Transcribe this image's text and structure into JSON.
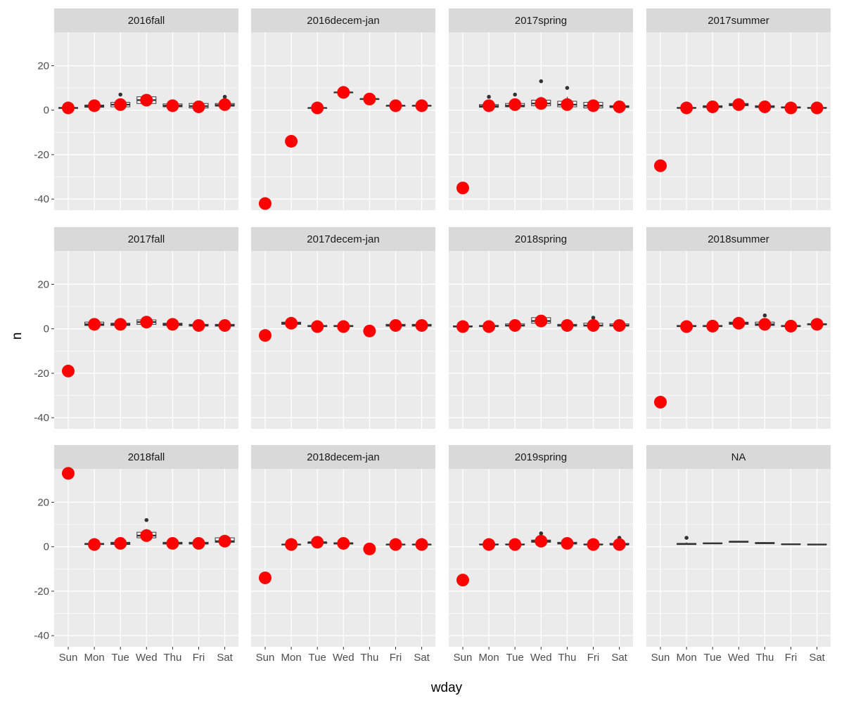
{
  "chart_data": {
    "type": "boxplot-faceted",
    "xlabel": "wday",
    "ylabel": "n",
    "ylim": [
      -45,
      35
    ],
    "yticks": [
      -40,
      -20,
      0,
      20
    ],
    "categories": [
      "Sun",
      "Mon",
      "Tue",
      "Wed",
      "Thu",
      "Fri",
      "Sat"
    ],
    "facet_layout": {
      "rows": 3,
      "cols": 4
    },
    "colors": {
      "point": "#ff0000",
      "panel_bg": "#ebebeb",
      "strip_bg": "#d9d9d9",
      "grid": "#ffffff",
      "box": "#333333"
    },
    "panels": [
      {
        "label": "2016fall",
        "boxes": [
          {
            "cat": "Sun",
            "min": 0.5,
            "q1": 0.8,
            "median": 1,
            "q3": 1.2,
            "max": 1.5,
            "outliers": []
          },
          {
            "cat": "Mon",
            "min": 1,
            "q1": 1.3,
            "median": 1.8,
            "q3": 2.3,
            "max": 4,
            "outliers": []
          },
          {
            "cat": "Tue",
            "min": 1,
            "q1": 1.5,
            "median": 2.5,
            "q3": 3.5,
            "max": 4.5,
            "outliers": [
              7
            ]
          },
          {
            "cat": "Wed",
            "min": 2.5,
            "q1": 3,
            "median": 4.5,
            "q3": 6,
            "max": 7,
            "outliers": []
          },
          {
            "cat": "Thu",
            "min": 1,
            "q1": 1.5,
            "median": 2,
            "q3": 2.8,
            "max": 4,
            "outliers": []
          },
          {
            "cat": "Fri",
            "min": 1,
            "q1": 1,
            "median": 1.8,
            "q3": 3,
            "max": 3.5,
            "outliers": []
          },
          {
            "cat": "Sat",
            "min": 1,
            "q1": 1.8,
            "median": 2.3,
            "q3": 3,
            "max": 4,
            "outliers": [
              6
            ]
          }
        ],
        "points": [
          1,
          2,
          2.5,
          4.5,
          2,
          1.5,
          2.5
        ]
      },
      {
        "label": "2016decem-jan",
        "boxes": [
          {
            "cat": "Tue",
            "min": 1,
            "q1": 1,
            "median": 1,
            "q3": 1,
            "max": 1,
            "outliers": []
          },
          {
            "cat": "Wed",
            "min": 8,
            "q1": 8,
            "median": 8,
            "q3": 8,
            "max": 8,
            "outliers": []
          },
          {
            "cat": "Thu",
            "min": 5,
            "q1": 5,
            "median": 5,
            "q3": 5,
            "max": 5,
            "outliers": []
          },
          {
            "cat": "Fri",
            "min": 2,
            "q1": 2,
            "median": 2,
            "q3": 2,
            "max": 2,
            "outliers": []
          },
          {
            "cat": "Sat",
            "min": 2,
            "q1": 2,
            "median": 2,
            "q3": 2,
            "max": 2,
            "outliers": []
          }
        ],
        "points": [
          -42,
          -14,
          1,
          8,
          5,
          2,
          2
        ]
      },
      {
        "label": "2017spring",
        "boxes": [
          {
            "cat": "Mon",
            "min": 1,
            "q1": 1.3,
            "median": 1.8,
            "q3": 2.5,
            "max": 4,
            "outliers": [
              6
            ]
          },
          {
            "cat": "Tue",
            "min": 1,
            "q1": 1.5,
            "median": 2,
            "q3": 3,
            "max": 4.5,
            "outliers": [
              7
            ]
          },
          {
            "cat": "Wed",
            "min": 1,
            "q1": 2,
            "median": 3,
            "q3": 4.5,
            "max": 6,
            "outliers": [
              13
            ]
          },
          {
            "cat": "Thu",
            "min": 1,
            "q1": 1.5,
            "median": 2.5,
            "q3": 4,
            "max": 6,
            "outliers": [
              10
            ]
          },
          {
            "cat": "Fri",
            "min": 1,
            "q1": 1,
            "median": 2,
            "q3": 3.5,
            "max": 4.5,
            "outliers": []
          },
          {
            "cat": "Sat",
            "min": 1,
            "q1": 1.2,
            "median": 1.5,
            "q3": 2,
            "max": 3.5,
            "outliers": []
          }
        ],
        "points": [
          -35,
          2,
          2.5,
          3,
          2.5,
          2,
          1.5
        ]
      },
      {
        "label": "2017summer",
        "boxes": [
          {
            "cat": "Mon",
            "min": 1,
            "q1": 1,
            "median": 1,
            "q3": 1.2,
            "max": 1.5,
            "outliers": []
          },
          {
            "cat": "Tue",
            "min": 1,
            "q1": 1.2,
            "median": 1.5,
            "q3": 2,
            "max": 2.5,
            "outliers": []
          },
          {
            "cat": "Wed",
            "min": 1.5,
            "q1": 2,
            "median": 2.5,
            "q3": 3,
            "max": 3.5,
            "outliers": []
          },
          {
            "cat": "Thu",
            "min": 1,
            "q1": 1.2,
            "median": 1.5,
            "q3": 2,
            "max": 2.5,
            "outliers": []
          },
          {
            "cat": "Fri",
            "min": 1,
            "q1": 1,
            "median": 1.2,
            "q3": 1.5,
            "max": 2,
            "outliers": []
          },
          {
            "cat": "Sat",
            "min": 1,
            "q1": 1,
            "median": 1,
            "q3": 1.2,
            "max": 1.5,
            "outliers": []
          }
        ],
        "points": [
          -25,
          1,
          1.5,
          2.5,
          1.5,
          1,
          1
        ]
      },
      {
        "label": "2017fall",
        "boxes": [
          {
            "cat": "Mon",
            "min": 1,
            "q1": 1.5,
            "median": 2,
            "q3": 3,
            "max": 4,
            "outliers": []
          },
          {
            "cat": "Tue",
            "min": 1,
            "q1": 1.5,
            "median": 2,
            "q3": 2.5,
            "max": 3,
            "outliers": []
          },
          {
            "cat": "Wed",
            "min": 1.5,
            "q1": 2,
            "median": 3,
            "q3": 4,
            "max": 5,
            "outliers": []
          },
          {
            "cat": "Thu",
            "min": 1,
            "q1": 1.5,
            "median": 2,
            "q3": 2.5,
            "max": 3.5,
            "outliers": []
          },
          {
            "cat": "Fri",
            "min": 1,
            "q1": 1.2,
            "median": 1.5,
            "q3": 2,
            "max": 2.5,
            "outliers": []
          },
          {
            "cat": "Sat",
            "min": 1,
            "q1": 1.2,
            "median": 1.5,
            "q3": 2,
            "max": 2.5,
            "outliers": []
          }
        ],
        "points": [
          -19,
          2,
          2,
          3,
          2,
          1.5,
          1.5
        ]
      },
      {
        "label": "2017decem-jan",
        "boxes": [
          {
            "cat": "Mon",
            "min": 1.5,
            "q1": 2,
            "median": 2.5,
            "q3": 3,
            "max": 3.5,
            "outliers": []
          },
          {
            "cat": "Tue",
            "min": 1,
            "q1": 1,
            "median": 1.2,
            "q3": 1.5,
            "max": 2,
            "outliers": []
          },
          {
            "cat": "Wed",
            "min": 1,
            "q1": 1,
            "median": 1.2,
            "q3": 1.5,
            "max": 2,
            "outliers": []
          },
          {
            "cat": "Fri",
            "min": 1,
            "q1": 1.2,
            "median": 1.5,
            "q3": 2,
            "max": 2.5,
            "outliers": []
          },
          {
            "cat": "Sat",
            "min": 1,
            "q1": 1.2,
            "median": 1.5,
            "q3": 2,
            "max": 2.5,
            "outliers": []
          }
        ],
        "points": [
          -3,
          2.5,
          1,
          1,
          -1,
          1.5,
          1.5
        ]
      },
      {
        "label": "2018spring",
        "boxes": [
          {
            "cat": "Sun",
            "min": 0.5,
            "q1": 1,
            "median": 1,
            "q3": 1.3,
            "max": 1.8,
            "outliers": []
          },
          {
            "cat": "Mon",
            "min": 1,
            "q1": 1,
            "median": 1.2,
            "q3": 1.5,
            "max": 2,
            "outliers": []
          },
          {
            "cat": "Tue",
            "min": 1,
            "q1": 1.2,
            "median": 1.5,
            "q3": 2.2,
            "max": 3,
            "outliers": []
          },
          {
            "cat": "Wed",
            "min": 2,
            "q1": 2.5,
            "median": 3.5,
            "q3": 5,
            "max": 5.5,
            "outliers": []
          },
          {
            "cat": "Thu",
            "min": 1,
            "q1": 1.2,
            "median": 1.5,
            "q3": 2,
            "max": 2.5,
            "outliers": []
          },
          {
            "cat": "Fri",
            "min": 1,
            "q1": 1.2,
            "median": 1.5,
            "q3": 2.5,
            "max": 4,
            "outliers": [
              5
            ]
          },
          {
            "cat": "Sat",
            "min": 1,
            "q1": 1.2,
            "median": 1.5,
            "q3": 2.2,
            "max": 3,
            "outliers": []
          }
        ],
        "points": [
          1,
          1,
          1.5,
          3.5,
          1.5,
          1.5,
          1.5
        ]
      },
      {
        "label": "2018summer",
        "boxes": [
          {
            "cat": "Mon",
            "min": 1,
            "q1": 1,
            "median": 1.2,
            "q3": 1.5,
            "max": 2,
            "outliers": []
          },
          {
            "cat": "Tue",
            "min": 1,
            "q1": 1,
            "median": 1.2,
            "q3": 1.5,
            "max": 2,
            "outliers": []
          },
          {
            "cat": "Wed",
            "min": 1.5,
            "q1": 2,
            "median": 2.5,
            "q3": 3,
            "max": 3.5,
            "outliers": []
          },
          {
            "cat": "Thu",
            "min": 1,
            "q1": 1.5,
            "median": 2,
            "q3": 3,
            "max": 4,
            "outliers": [
              6
            ]
          },
          {
            "cat": "Fri",
            "min": 1,
            "q1": 1,
            "median": 1.2,
            "q3": 1.5,
            "max": 2,
            "outliers": []
          },
          {
            "cat": "Sat",
            "min": 1.5,
            "q1": 1.8,
            "median": 2,
            "q3": 2.3,
            "max": 2.5,
            "outliers": []
          }
        ],
        "points": [
          -33,
          1,
          1.2,
          2.5,
          2,
          1.2,
          2
        ]
      },
      {
        "label": "2018fall",
        "boxes": [
          {
            "cat": "Mon",
            "min": 1,
            "q1": 1,
            "median": 1.2,
            "q3": 1.5,
            "max": 2,
            "outliers": []
          },
          {
            "cat": "Tue",
            "min": 1,
            "q1": 1,
            "median": 1.5,
            "q3": 2,
            "max": 2.5,
            "outliers": []
          },
          {
            "cat": "Wed",
            "min": 3,
            "q1": 4,
            "median": 5,
            "q3": 6.5,
            "max": 8,
            "outliers": [
              12
            ]
          },
          {
            "cat": "Thu",
            "min": 1,
            "q1": 1.2,
            "median": 1.5,
            "q3": 2,
            "max": 2.5,
            "outliers": []
          },
          {
            "cat": "Fri",
            "min": 1,
            "q1": 1.2,
            "median": 1.5,
            "q3": 2,
            "max": 2.5,
            "outliers": []
          },
          {
            "cat": "Sat",
            "min": 1.5,
            "q1": 2,
            "median": 2.5,
            "q3": 4,
            "max": 5,
            "outliers": []
          }
        ],
        "points": [
          33,
          1,
          1.5,
          5,
          1.5,
          1.5,
          2.5
        ]
      },
      {
        "label": "2018decem-jan",
        "boxes": [
          {
            "cat": "Mon",
            "min": 1,
            "q1": 1,
            "median": 1,
            "q3": 1,
            "max": 1,
            "outliers": []
          },
          {
            "cat": "Tue",
            "min": 1.5,
            "q1": 1.5,
            "median": 2,
            "q3": 2,
            "max": 2.5,
            "outliers": []
          },
          {
            "cat": "Wed",
            "min": 1,
            "q1": 1.2,
            "median": 1.5,
            "q3": 1.8,
            "max": 2,
            "outliers": []
          },
          {
            "cat": "Fri",
            "min": 1,
            "q1": 1,
            "median": 1,
            "q3": 1,
            "max": 1,
            "outliers": []
          },
          {
            "cat": "Sat",
            "min": 1,
            "q1": 1,
            "median": 1,
            "q3": 1,
            "max": 1,
            "outliers": []
          }
        ],
        "points": [
          -14,
          1,
          2,
          1.5,
          -1,
          1,
          1
        ]
      },
      {
        "label": "2019spring",
        "boxes": [
          {
            "cat": "Mon",
            "min": 1,
            "q1": 1,
            "median": 1,
            "q3": 1.2,
            "max": 1.5,
            "outliers": []
          },
          {
            "cat": "Tue",
            "min": 1,
            "q1": 1,
            "median": 1,
            "q3": 1.2,
            "max": 1.5,
            "outliers": []
          },
          {
            "cat": "Wed",
            "min": 1.5,
            "q1": 2,
            "median": 2.5,
            "q3": 3,
            "max": 4.5,
            "outliers": [
              6
            ]
          },
          {
            "cat": "Thu",
            "min": 1,
            "q1": 1.2,
            "median": 1.5,
            "q3": 2,
            "max": 2.5,
            "outliers": []
          },
          {
            "cat": "Fri",
            "min": 1,
            "q1": 1,
            "median": 1,
            "q3": 1.2,
            "max": 1.5,
            "outliers": []
          },
          {
            "cat": "Sat",
            "min": 1,
            "q1": 1,
            "median": 1,
            "q3": 1.5,
            "max": 3,
            "outliers": [
              4
            ]
          }
        ],
        "points": [
          -15,
          1,
          1,
          2.5,
          1.5,
          1,
          1
        ]
      },
      {
        "label": "NA",
        "boxes": [
          {
            "cat": "Mon",
            "min": 1,
            "q1": 1,
            "median": 1.2,
            "q3": 1.5,
            "max": 2,
            "outliers": [
              4
            ]
          },
          {
            "cat": "Tue",
            "min": 1.2,
            "q1": 1.4,
            "median": 1.5,
            "q3": 1.7,
            "max": 1.9,
            "outliers": []
          },
          {
            "cat": "Wed",
            "min": 1.8,
            "q1": 2,
            "median": 2.2,
            "q3": 2.5,
            "max": 2.7,
            "outliers": []
          },
          {
            "cat": "Thu",
            "min": 1.2,
            "q1": 1.4,
            "median": 1.6,
            "q3": 1.9,
            "max": 2.1,
            "outliers": []
          },
          {
            "cat": "Fri",
            "min": 1,
            "q1": 1,
            "median": 1.1,
            "q3": 1.2,
            "max": 1.3,
            "outliers": []
          },
          {
            "cat": "Sat",
            "min": 1,
            "q1": 1,
            "median": 1,
            "q3": 1.1,
            "max": 1.2,
            "outliers": []
          }
        ],
        "points": []
      }
    ]
  }
}
